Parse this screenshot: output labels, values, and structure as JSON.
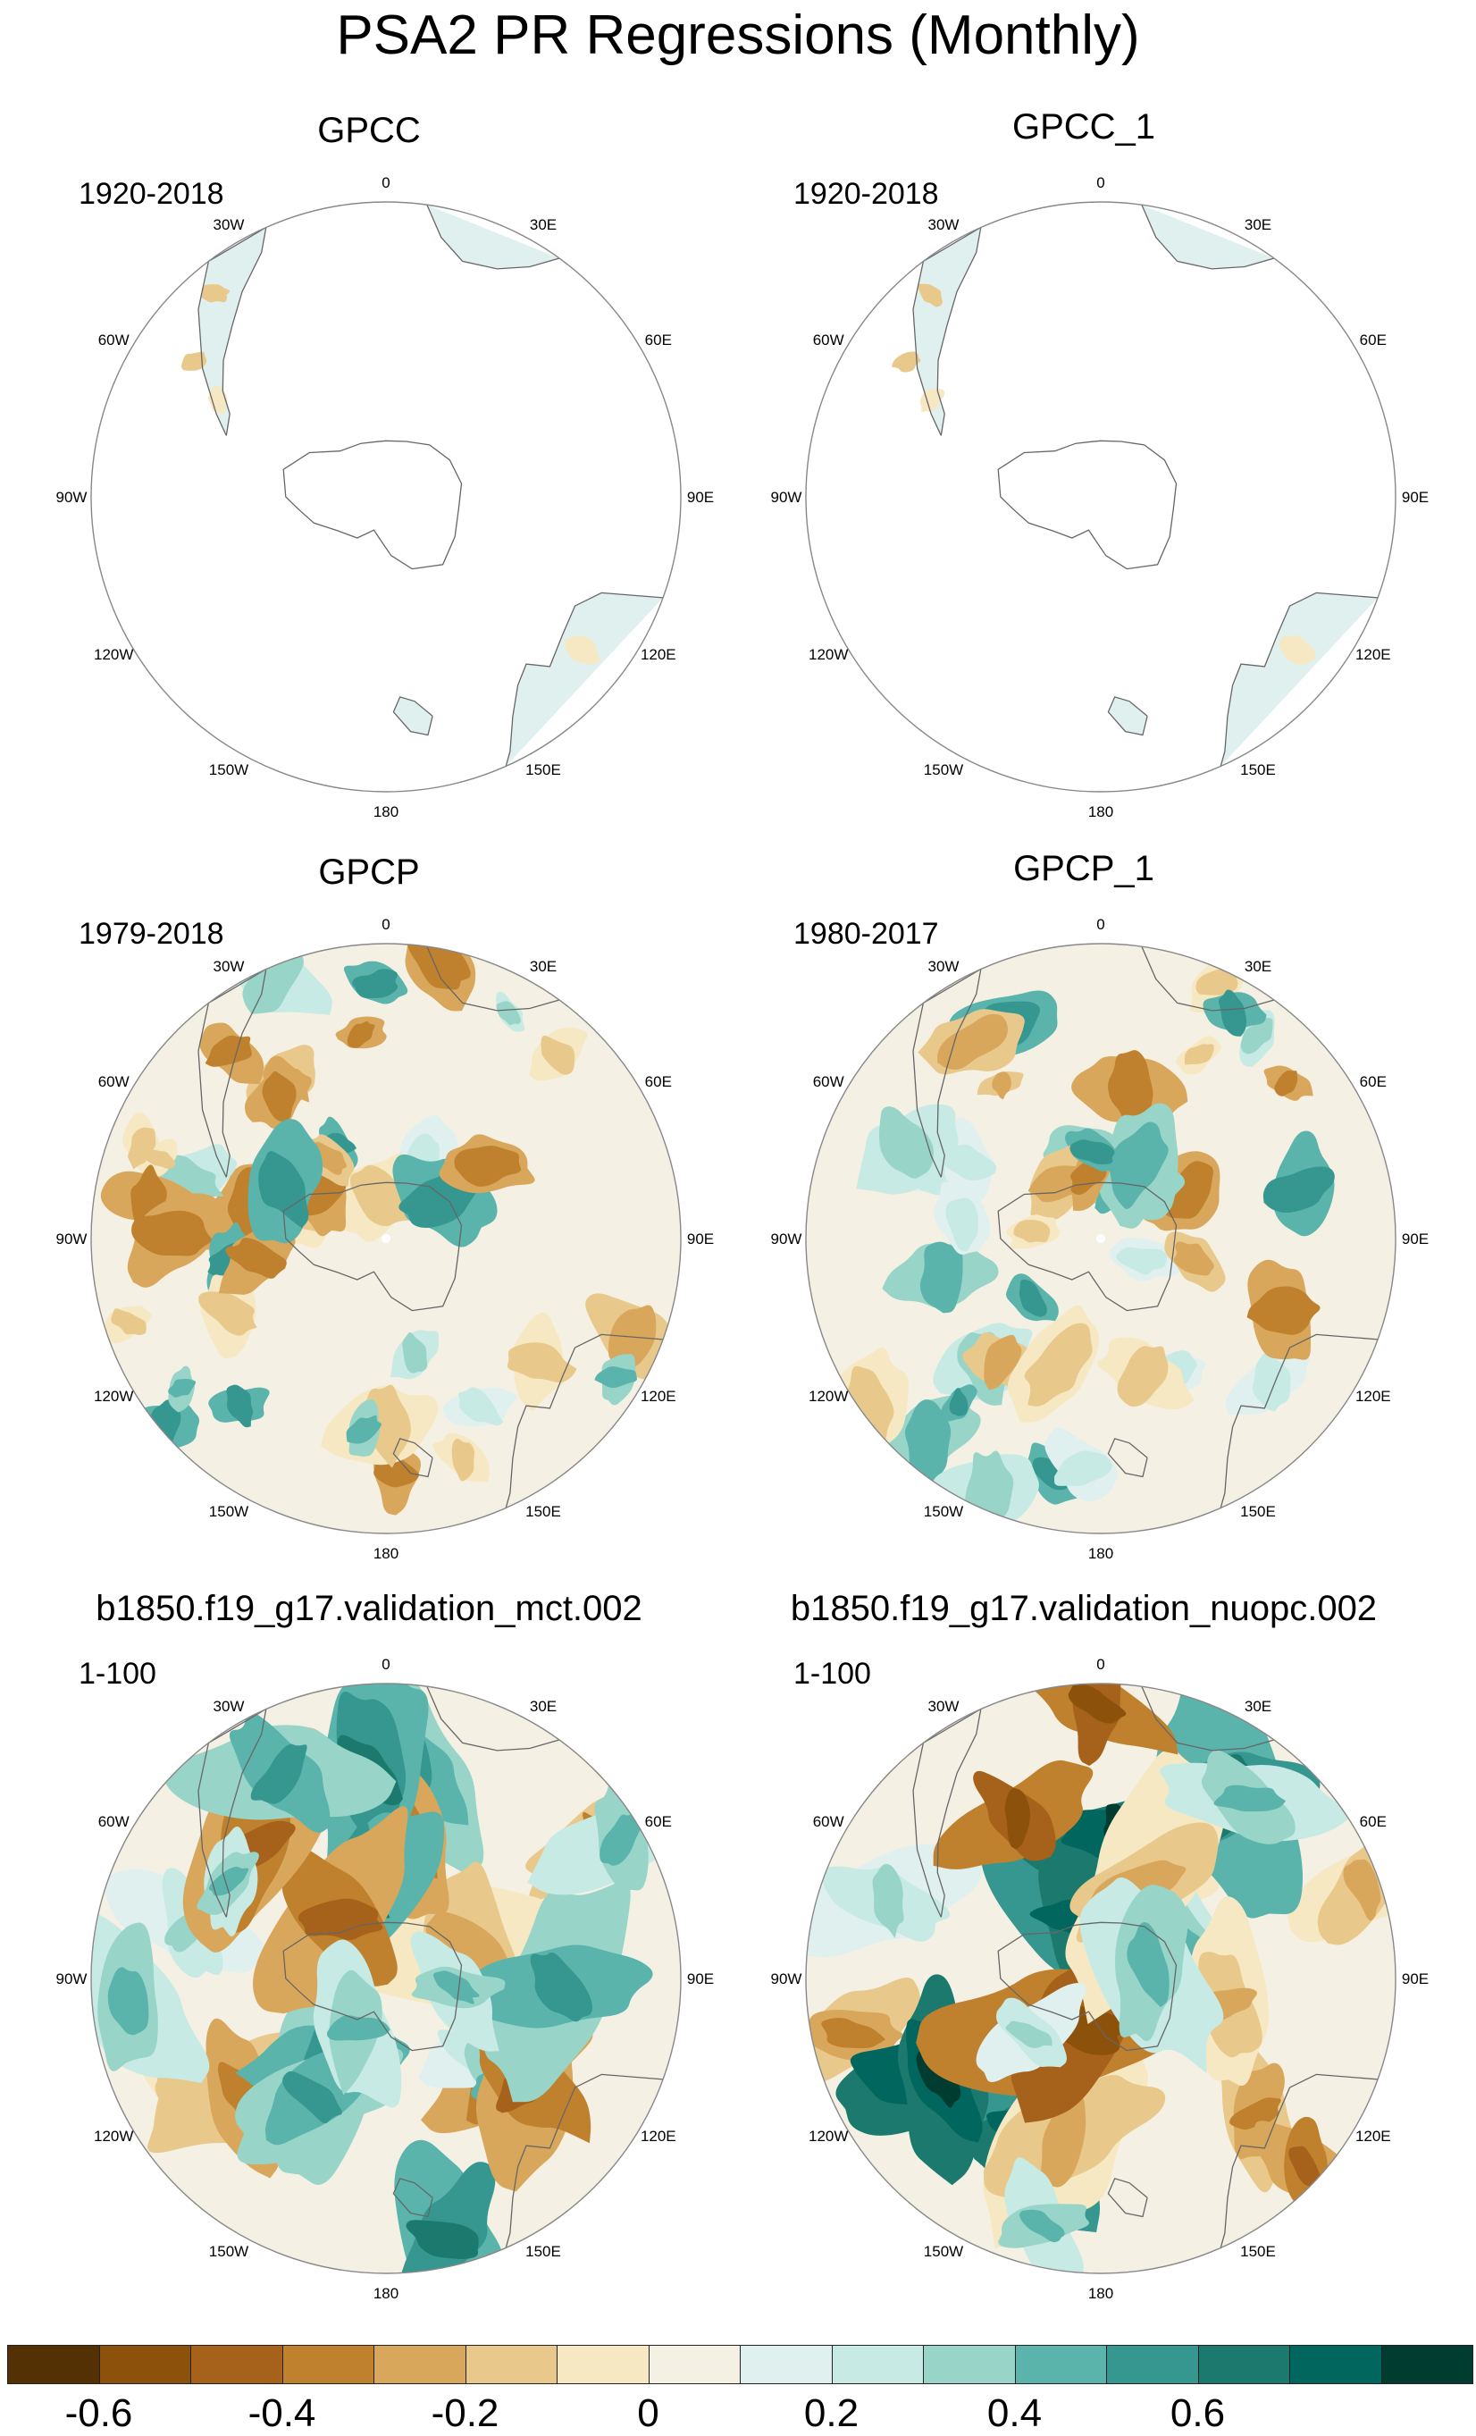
{
  "title": "PSA2 PR Regressions (Monthly)",
  "panels": [
    {
      "name": "GPCC",
      "period": "1920-2018",
      "field": "land_only",
      "seed": 11
    },
    {
      "name": "GPCC_1",
      "period": "1920-2018",
      "field": "land_only",
      "seed": 23
    },
    {
      "name": "GPCP",
      "period": "1979-2018",
      "field": "obs_full",
      "seed": 37
    },
    {
      "name": "GPCP_1",
      "period": "1980-2017",
      "field": "obs_full",
      "seed": 41
    },
    {
      "name": "b1850.f19_g17.validation_mct.002",
      "period": "1-100",
      "field": "model",
      "seed": 53
    },
    {
      "name": "b1850.f19_g17.validation_nuopc.002",
      "period": "1-100",
      "field": "model_strong",
      "seed": 67
    }
  ],
  "longitude_labels": [
    "0",
    "30E",
    "60E",
    "90E",
    "120E",
    "150E",
    "180",
    "150W",
    "120W",
    "90W",
    "60W",
    "30W"
  ],
  "colorbar": {
    "colors": [
      "#543005",
      "#8c510a",
      "#a6611a",
      "#bf812d",
      "#d9a75b",
      "#e8c98b",
      "#f6e8c3",
      "#f5f0e4",
      "#e0f0ef",
      "#c7eae5",
      "#98d5c8",
      "#5ab4ac",
      "#35978f",
      "#1b7a6d",
      "#01665e",
      "#003c30"
    ],
    "tick_labels": [
      "-0.6",
      "-0.4",
      "-0.2",
      "0",
      "0.2",
      "0.4",
      "0.6"
    ],
    "tick_positions": [
      1,
      3,
      5,
      7,
      9,
      11,
      13
    ]
  }
}
